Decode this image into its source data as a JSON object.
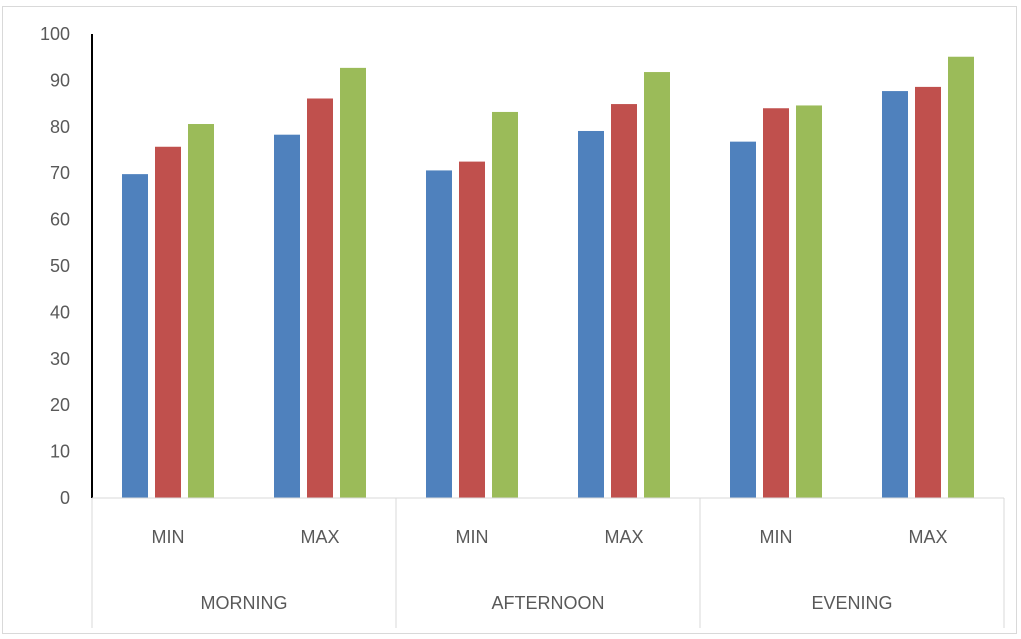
{
  "chart_data": {
    "type": "bar",
    "groups": [
      "MORNING",
      "AFTERNOON",
      "EVENING"
    ],
    "categories": [
      "MIN",
      "MAX",
      "MIN",
      "MAX",
      "MIN",
      "MAX"
    ],
    "series": [
      {
        "values": [
          69.8,
          78.3,
          70.6,
          79.1,
          76.8,
          87.7
        ],
        "color": "#4f81bd"
      },
      {
        "values": [
          75.7,
          86.1,
          72.5,
          84.9,
          84.0,
          88.6
        ],
        "color": "#c0504d"
      },
      {
        "values": [
          80.6,
          92.7,
          83.2,
          91.8,
          84.6,
          95.1
        ],
        "color": "#9bbb59"
      }
    ],
    "ylim": [
      0,
      100
    ],
    "yticks": [
      0,
      10,
      20,
      30,
      40,
      50,
      60,
      70,
      80,
      90,
      100
    ],
    "legend": "none",
    "grid": false
  }
}
